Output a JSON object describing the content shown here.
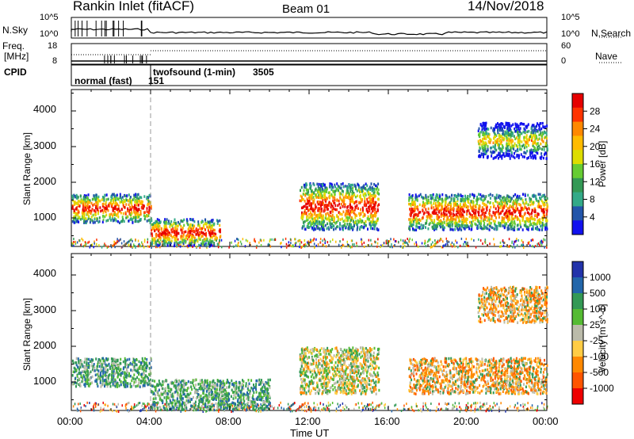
{
  "header": {
    "radar_title": "Rankin Inlet (fitACF)",
    "beam": "Beam 01",
    "date": "14/Nov/2018"
  },
  "strip_panels": {
    "nsky_label": "N.Sky",
    "nsky_ticks": [
      "10^5",
      "10^0"
    ],
    "nsearch_label": "N.Search",
    "nsearch_ticks": [
      "10^5",
      "10^0"
    ],
    "freq_label_1": "Freq.",
    "freq_label_2": "[MHz]",
    "freq_ticks": [
      "18",
      "8"
    ],
    "nave_label": "Nave",
    "nave_ticks": [
      "60",
      "0"
    ],
    "cpid_label": "CPID",
    "cpid_segments": [
      {
        "name": "normal (fast)",
        "id": "151",
        "start_hour": 0,
        "end_hour": 4
      },
      {
        "name": "twofsound (1-min)",
        "id": "3505",
        "start_hour": 4,
        "end_hour": 24
      }
    ]
  },
  "axes": {
    "ylabel": "Slant Range [km]",
    "xlabel": "Time UT",
    "x_ticks": [
      "00:00",
      "04:00",
      "08:00",
      "12:00",
      "16:00",
      "20:00",
      "00:00"
    ],
    "y_ticks": [
      "4000",
      "3000",
      "2000",
      "1000"
    ]
  },
  "chart_data": [
    {
      "type": "heatmap",
      "panel": "power",
      "xlabel": "",
      "ylabel": "Slant Range [km]",
      "xlim_hours": [
        0,
        24
      ],
      "ylim_km": [
        200,
        4600
      ],
      "colorbar_label": "Power [dB]",
      "colorbar_ticks": [
        "28",
        "24",
        "20",
        "16",
        "12",
        "8",
        "4"
      ],
      "colorbar_colors": [
        "#e60000",
        "#ff3300",
        "#ff8800",
        "#ffbb00",
        "#dddd00",
        "#66cc33",
        "#339955",
        "#33aa88",
        "#2255aa",
        "#1111ee"
      ],
      "echo_regions": [
        {
          "t0": 0.0,
          "t1": 4.0,
          "r0": 900,
          "r1": 1700,
          "level": "high"
        },
        {
          "t0": 4.0,
          "t1": 7.5,
          "r0": 250,
          "r1": 1000,
          "level": "high"
        },
        {
          "t0": 11.5,
          "t1": 15.5,
          "r0": 700,
          "r1": 2000,
          "level": "high"
        },
        {
          "t0": 17.0,
          "t1": 24.0,
          "r0": 700,
          "r1": 1700,
          "level": "high"
        },
        {
          "t0": 20.5,
          "t1": 24.0,
          "r0": 2700,
          "r1": 3700,
          "level": "medium"
        }
      ]
    },
    {
      "type": "heatmap",
      "panel": "velocity",
      "xlabel": "Time UT",
      "ylabel": "Slant Range [km]",
      "xlim_hours": [
        0,
        24
      ],
      "ylim_km": [
        200,
        4600
      ],
      "colorbar_label": "Velocity [m s^-1]",
      "colorbar_ticks": [
        "1000",
        "500",
        "100",
        "25",
        "-25",
        "-100",
        "-500",
        "-1000"
      ],
      "colorbar_colors": [
        "#2233aa",
        "#2266aa",
        "#339955",
        "#55bb33",
        "#bbbbaa",
        "#ffcc44",
        "#ff8800",
        "#ff5500",
        "#ee0000"
      ],
      "echo_regions": [
        {
          "t0": 0.0,
          "t1": 4.0,
          "r0": 900,
          "r1": 1700,
          "level": "positive"
        },
        {
          "t0": 4.0,
          "t1": 10.0,
          "r0": 250,
          "r1": 1100,
          "level": "positive"
        },
        {
          "t0": 11.5,
          "t1": 15.5,
          "r0": 700,
          "r1": 2000,
          "level": "mixed"
        },
        {
          "t0": 17.0,
          "t1": 24.0,
          "r0": 700,
          "r1": 1700,
          "level": "negative"
        },
        {
          "t0": 20.5,
          "t1": 24.0,
          "r0": 2700,
          "r1": 3700,
          "level": "negative"
        }
      ]
    }
  ]
}
